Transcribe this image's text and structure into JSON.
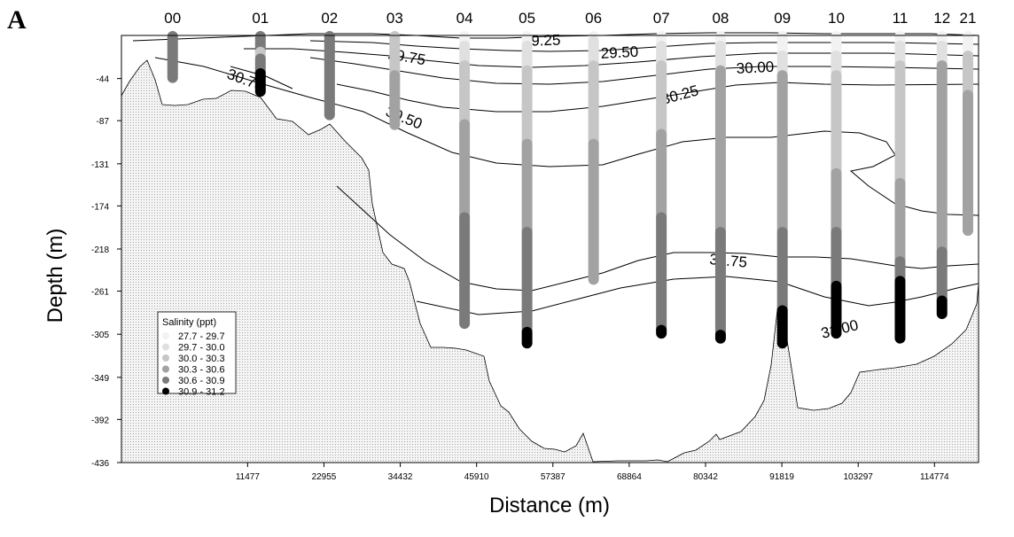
{
  "panel_letter": "A",
  "chart_data": {
    "type": "scatter",
    "title": "",
    "xlabel": "Distance (m)",
    "ylabel": "Depth (m)",
    "xlim": [
      0,
      114774
    ],
    "ylim": [
      -436,
      0
    ],
    "x_ticks": [
      "11477",
      "22955",
      "34432",
      "45910",
      "57387",
      "68864",
      "80342",
      "91819",
      "103297",
      "114774"
    ],
    "y_ticks": [
      "-44",
      "-87",
      "-131",
      "-174",
      "-218",
      "-261",
      "-305",
      "-349",
      "-392",
      "-436"
    ],
    "legend": {
      "title": "Salinity (ppt)",
      "placement": "bottom-left",
      "classes": [
        {
          "label": "27.7 - 29.7",
          "color": "#f2f2f2"
        },
        {
          "label": "29.7 - 30.0",
          "color": "#e0e0e0"
        },
        {
          "label": "30.0 - 30.3",
          "color": "#c6c6c6"
        },
        {
          "label": "30.3 - 30.6",
          "color": "#a2a2a2"
        },
        {
          "label": "30.6 - 30.9",
          "color": "#7a7a7a"
        },
        {
          "label": "30.9 - 31.2",
          "color": "#000000"
        }
      ]
    },
    "stations": [
      {
        "name": "00",
        "x": 200,
        "segments": [
          [
            0,
            -44,
            4
          ]
        ]
      },
      {
        "name": "01",
        "x": 13400,
        "segments": [
          [
            0,
            -16,
            4
          ],
          [
            -16,
            -23,
            2
          ],
          [
            -23,
            -38,
            4
          ],
          [
            -38,
            -58,
            5
          ]
        ]
      },
      {
        "name": "02",
        "x": 23800,
        "segments": [
          [
            0,
            -58,
            4
          ],
          [
            -58,
            -82,
            4
          ]
        ]
      },
      {
        "name": "03",
        "x": 33600,
        "segments": [
          [
            0,
            -40,
            2
          ],
          [
            -40,
            -92,
            3
          ]
        ]
      },
      {
        "name": "04",
        "x": 44100,
        "segments": [
          [
            0,
            -10,
            0
          ],
          [
            -10,
            -30,
            1
          ],
          [
            -30,
            -90,
            2
          ],
          [
            -90,
            -185,
            3
          ],
          [
            -185,
            -295,
            4
          ]
        ]
      },
      {
        "name": "05",
        "x": 53500,
        "segments": [
          [
            0,
            -10,
            0
          ],
          [
            -10,
            -35,
            1
          ],
          [
            -35,
            -110,
            2
          ],
          [
            -110,
            -200,
            3
          ],
          [
            -200,
            -302,
            4
          ],
          [
            -302,
            -315,
            5
          ]
        ]
      },
      {
        "name": "06",
        "x": 63500,
        "segments": [
          [
            0,
            -5,
            0
          ],
          [
            -5,
            -30,
            1
          ],
          [
            -30,
            -110,
            2
          ],
          [
            -110,
            -250,
            3
          ]
        ]
      },
      {
        "name": "07",
        "x": 73700,
        "segments": [
          [
            0,
            -10,
            0
          ],
          [
            -10,
            -30,
            1
          ],
          [
            -30,
            -100,
            2
          ],
          [
            -100,
            -185,
            3
          ],
          [
            -185,
            -300,
            4
          ],
          [
            -300,
            -305,
            5
          ]
        ]
      },
      {
        "name": "08",
        "x": 82600,
        "segments": [
          [
            0,
            -10,
            0
          ],
          [
            -10,
            -35,
            1
          ],
          [
            -35,
            -200,
            3
          ],
          [
            -200,
            -305,
            4
          ],
          [
            -305,
            -310,
            5
          ]
        ]
      },
      {
        "name": "09",
        "x": 91900,
        "segments": [
          [
            0,
            -20,
            0
          ],
          [
            -20,
            -40,
            1
          ],
          [
            -40,
            -200,
            3
          ],
          [
            -200,
            -280,
            4
          ],
          [
            -280,
            -315,
            5
          ]
        ]
      },
      {
        "name": "10",
        "x": 100000,
        "segments": [
          [
            0,
            -20,
            0
          ],
          [
            -20,
            -40,
            1
          ],
          [
            -40,
            -140,
            2
          ],
          [
            -140,
            -200,
            3
          ],
          [
            -200,
            -255,
            4
          ],
          [
            -255,
            -305,
            5
          ]
        ]
      },
      {
        "name": "11",
        "x": 109600,
        "segments": [
          [
            0,
            -10,
            0
          ],
          [
            -10,
            -30,
            1
          ],
          [
            -30,
            -150,
            2
          ],
          [
            -150,
            -230,
            3
          ],
          [
            -230,
            -250,
            4
          ],
          [
            -250,
            -310,
            5
          ]
        ]
      },
      {
        "name": "12",
        "x": 115900,
        "segments": [
          [
            0,
            -10,
            0
          ],
          [
            -10,
            -30,
            1
          ],
          [
            -30,
            -220,
            3
          ],
          [
            -220,
            -270,
            4
          ],
          [
            -270,
            -285,
            5
          ]
        ]
      },
      {
        "name": "21",
        "x": 119800,
        "segments": [
          [
            0,
            -20,
            0
          ],
          [
            -20,
            -60,
            2
          ],
          [
            -60,
            -200,
            3
          ]
        ]
      }
    ],
    "contours": [
      {
        "value": "29.25"
      },
      {
        "value": "29.50"
      },
      {
        "value": "29.75"
      },
      {
        "value": "30.00"
      },
      {
        "value": "30.25"
      },
      {
        "value": "30.50"
      },
      {
        "value": "30.75"
      },
      {
        "value": "30.75"
      },
      {
        "value": "31.00"
      }
    ]
  }
}
